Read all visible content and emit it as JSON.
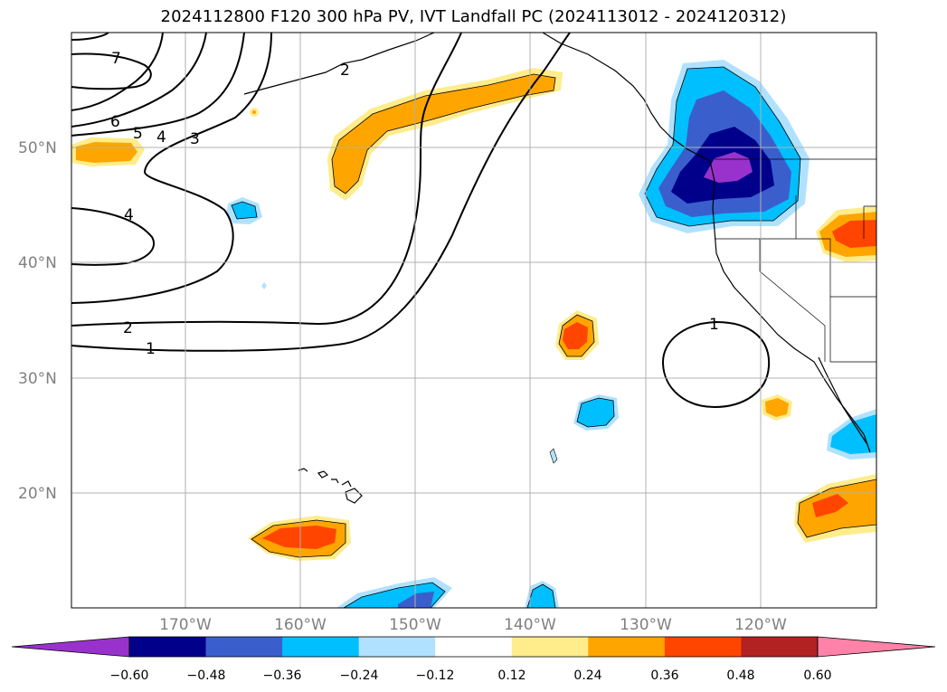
{
  "title": "2024112800 F120 300 hPa PV, IVT Landfall PC (2024113012 - 2024120312)",
  "map": {
    "lon_labels": [
      "170°W",
      "160°W",
      "150°W",
      "140°W",
      "130°W",
      "120°W"
    ],
    "lat_labels": [
      "50°N",
      "40°N",
      "30°N",
      "20°N"
    ],
    "pv_contour_labels": [
      "7",
      "6",
      "5",
      "4",
      "3",
      "2",
      "4",
      "2",
      "1",
      "1"
    ]
  },
  "colorbar": {
    "tick_labels": [
      "−0.60",
      "−0.48",
      "−0.36",
      "−0.24",
      "−0.12",
      "0.12",
      "0.24",
      "0.36",
      "0.48",
      "0.60"
    ],
    "colors": [
      "#9932cc",
      "#00008b",
      "#3a5fcd",
      "#00bfff",
      "#b0e2ff",
      "#ffffff",
      "#ffec8b",
      "#ffa500",
      "#ff4500",
      "#b22222",
      "#ff83a8"
    ]
  }
}
